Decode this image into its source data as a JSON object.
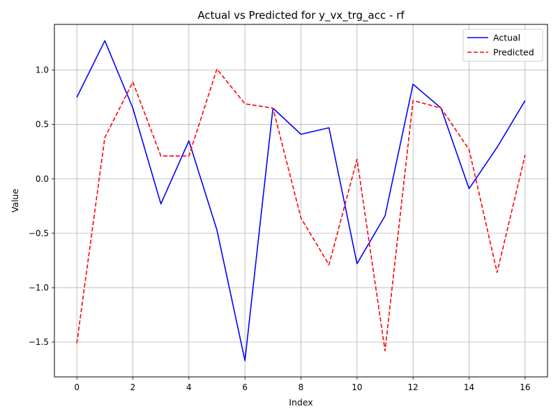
{
  "chart_data": {
    "type": "line",
    "title": "Actual vs Predicted for y_vx_trg_acc - rf",
    "xlabel": "Index",
    "ylabel": "Value",
    "x": [
      0,
      1,
      2,
      3,
      4,
      5,
      6,
      7,
      8,
      9,
      10,
      11,
      12,
      13,
      14,
      15,
      16
    ],
    "xlim": [
      -0.8,
      16.8
    ],
    "ylim": [
      -1.82,
      1.42
    ],
    "xticks": [
      0,
      2,
      4,
      6,
      8,
      10,
      12,
      14,
      16
    ],
    "xtick_labels": [
      "0",
      "2",
      "4",
      "6",
      "8",
      "10",
      "12",
      "14",
      "16"
    ],
    "yticks": [
      -1.5,
      -1.0,
      -0.5,
      0.0,
      0.5,
      1.0
    ],
    "ytick_labels": [
      "−1.5",
      "−1.0",
      "−0.5",
      "0.0",
      "0.5",
      "1.0"
    ],
    "grid": true,
    "legend_position": "top-right",
    "series": [
      {
        "name": "Actual",
        "color": "#0000ff",
        "style": "solid",
        "values": [
          0.75,
          1.27,
          0.65,
          -0.23,
          0.35,
          -0.47,
          -1.67,
          0.65,
          0.41,
          0.47,
          -0.78,
          -0.34,
          0.87,
          0.65,
          -0.09,
          0.29,
          0.72
        ]
      },
      {
        "name": "Predicted",
        "color": "#ff0000",
        "style": "dashed",
        "values": [
          -1.51,
          0.38,
          0.89,
          0.21,
          0.21,
          1.01,
          0.69,
          0.65,
          -0.36,
          -0.79,
          0.18,
          -1.58,
          0.72,
          0.65,
          0.27,
          -0.86,
          0.22
        ]
      }
    ]
  }
}
